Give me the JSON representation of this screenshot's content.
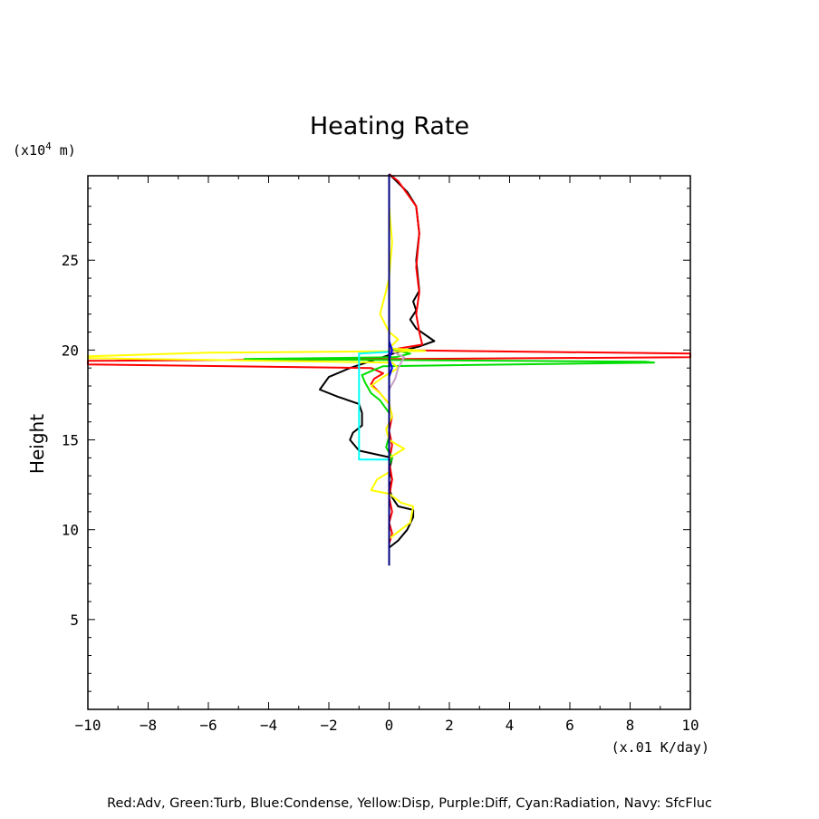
{
  "chart_data": {
    "type": "line",
    "title": "Heating Rate",
    "ylabel": "Height",
    "yunit_prefix": "(x10",
    "yunit_exp": "4",
    "yunit_suffix": " m)",
    "xunit": "(x.01 K/day)",
    "xlim": [
      -10,
      10
    ],
    "ylim": [
      0,
      29.7
    ],
    "xticks": [
      -10,
      -8,
      -6,
      -4,
      -2,
      0,
      2,
      4,
      6,
      8,
      10
    ],
    "xtick_labels": [
      "−10",
      "−8",
      "−6",
      "−4",
      "−2",
      "0",
      "2",
      "4",
      "6",
      "8",
      "10"
    ],
    "yticks": [
      5,
      10,
      15,
      20,
      25
    ],
    "ytick_labels": [
      "5",
      "10",
      "15",
      "20",
      "25"
    ],
    "legend_text": "Red:Adv, Green:Turb, Blue:Condense, Yellow:Disp, Purple:Diff, Cyan:Radiation, Navy: SfcFluc",
    "series": [
      {
        "color": "#000000",
        "points": [
          [
            0.0,
            9.0
          ],
          [
            0.3,
            9.4
          ],
          [
            0.6,
            10.0
          ],
          [
            0.8,
            10.7
          ],
          [
            0.8,
            11.1
          ],
          [
            0.3,
            11.3
          ],
          [
            0.1,
            11.8
          ],
          [
            0.0,
            12.3
          ],
          [
            0.1,
            12.8
          ],
          [
            0.0,
            13.3
          ],
          [
            0.1,
            14.0
          ],
          [
            -1.0,
            14.4
          ],
          [
            -1.3,
            15.0
          ],
          [
            -1.2,
            15.4
          ],
          [
            -0.9,
            15.8
          ],
          [
            -0.9,
            16.5
          ],
          [
            -1.0,
            17.0
          ],
          [
            -1.7,
            17.4
          ],
          [
            -2.3,
            17.8
          ],
          [
            -2.0,
            18.5
          ],
          [
            -1.3,
            19.0
          ],
          [
            -0.4,
            19.5
          ],
          [
            0.3,
            19.9
          ],
          [
            1.0,
            20.2
          ],
          [
            1.5,
            20.5
          ],
          [
            0.9,
            21.2
          ],
          [
            0.7,
            21.7
          ],
          [
            0.9,
            22.2
          ],
          [
            0.8,
            22.7
          ],
          [
            1.0,
            23.3
          ],
          [
            0.9,
            25.0
          ],
          [
            1.0,
            26.5
          ],
          [
            0.9,
            28.0
          ],
          [
            0.6,
            28.8
          ],
          [
            0.0,
            29.8
          ]
        ]
      },
      {
        "color": "#ff0000",
        "points": [
          [
            0.0,
            9.2
          ],
          [
            0.1,
            9.8
          ],
          [
            0.0,
            10.4
          ],
          [
            0.1,
            11.0
          ],
          [
            0.0,
            11.8
          ],
          [
            0.1,
            12.8
          ],
          [
            0.0,
            13.8
          ],
          [
            0.1,
            14.7
          ],
          [
            0.0,
            15.5
          ],
          [
            0.1,
            16.3
          ],
          [
            0.0,
            17.0
          ],
          [
            -0.3,
            17.6
          ],
          [
            -0.6,
            18.1
          ],
          [
            -0.5,
            18.4
          ],
          [
            -0.2,
            18.7
          ],
          [
            -0.6,
            19.0
          ],
          [
            -10.0,
            19.2
          ],
          [
            -10.0,
            19.4
          ],
          [
            10.0,
            19.6
          ],
          [
            10.0,
            19.8
          ],
          [
            0.0,
            20.0
          ],
          [
            1.1,
            20.3
          ],
          [
            1.0,
            21.0
          ],
          [
            0.9,
            22.0
          ],
          [
            1.0,
            23.2
          ],
          [
            0.9,
            24.6
          ],
          [
            1.0,
            26.5
          ],
          [
            0.9,
            28.0
          ],
          [
            0.3,
            29.4
          ],
          [
            0.0,
            29.8
          ]
        ]
      },
      {
        "color": "#00dd00",
        "points": [
          [
            0.0,
            13.6
          ],
          [
            0.1,
            14.0
          ],
          [
            -0.1,
            14.6
          ],
          [
            0.0,
            15.2
          ],
          [
            0.0,
            16.5
          ],
          [
            -0.3,
            17.2
          ],
          [
            -0.6,
            17.6
          ],
          [
            -0.8,
            18.2
          ],
          [
            -0.9,
            18.6
          ],
          [
            -0.5,
            18.9
          ],
          [
            -0.2,
            19.1
          ],
          [
            8.8,
            19.3
          ],
          [
            8.5,
            19.35
          ],
          [
            -4.8,
            19.5
          ],
          [
            0.2,
            19.6
          ],
          [
            0.7,
            19.8
          ],
          [
            0.2,
            20.0
          ],
          [
            0.0,
            20.2
          ]
        ]
      },
      {
        "color": "#ffff00",
        "points": [
          [
            0.0,
            9.5
          ],
          [
            0.7,
            10.4
          ],
          [
            0.8,
            11.3
          ],
          [
            0.4,
            11.5
          ],
          [
            0.0,
            12.0
          ],
          [
            -0.6,
            12.2
          ],
          [
            -0.4,
            12.8
          ],
          [
            0.0,
            13.2
          ],
          [
            0.0,
            14.0
          ],
          [
            0.5,
            14.5
          ],
          [
            0.0,
            15.0
          ],
          [
            -0.1,
            15.6
          ],
          [
            0.1,
            16.3
          ],
          [
            0.0,
            17.0
          ],
          [
            -0.3,
            17.6
          ],
          [
            -0.6,
            18.0
          ],
          [
            -0.2,
            18.5
          ],
          [
            0.3,
            19.0
          ],
          [
            0.1,
            19.3
          ],
          [
            -10.0,
            19.55
          ],
          [
            -10.0,
            19.65
          ],
          [
            -6.0,
            19.85
          ],
          [
            1.2,
            19.95
          ],
          [
            0.0,
            20.1
          ],
          [
            0.3,
            20.6
          ],
          [
            0.0,
            21.0
          ],
          [
            -0.3,
            22.0
          ],
          [
            -0.1,
            23.3
          ],
          [
            0.0,
            24.0
          ],
          [
            0.1,
            26.0
          ],
          [
            0.0,
            28.0
          ],
          [
            0.0,
            29.5
          ]
        ]
      },
      {
        "color": "#c8a0c8",
        "points": [
          [
            0.0,
            17.8
          ],
          [
            0.2,
            18.4
          ],
          [
            0.3,
            19.0
          ],
          [
            0.5,
            19.6
          ],
          [
            0.0,
            20.0
          ]
        ]
      },
      {
        "color": "#00ffff",
        "points": [
          [
            0.0,
            13.9
          ],
          [
            -1.0,
            13.9
          ],
          [
            -1.0,
            19.8
          ],
          [
            0.0,
            19.9
          ]
        ]
      },
      {
        "color": "#0000ff",
        "points": [
          [
            0.0,
            17.6
          ],
          [
            0.0,
            18.5
          ],
          [
            0.1,
            19.0
          ],
          [
            0.0,
            19.5
          ],
          [
            0.1,
            20.0
          ],
          [
            0.0,
            20.5
          ]
        ]
      },
      {
        "color": "#000080",
        "points": [
          [
            0.0,
            8.0
          ],
          [
            0.0,
            29.8
          ]
        ]
      }
    ]
  }
}
